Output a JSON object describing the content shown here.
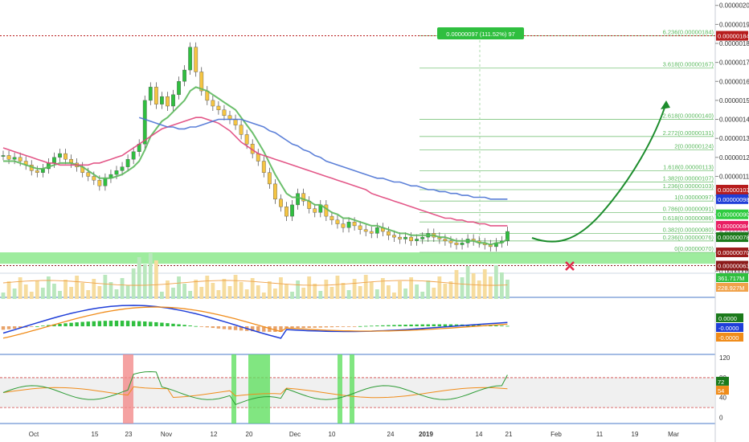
{
  "chart_data": {
    "type": "line",
    "symbol_unit": "price",
    "x_ticks": [
      {
        "label": "Oct",
        "bold": false
      },
      {
        "label": "15",
        "bold": false
      },
      {
        "label": "23",
        "bold": false
      },
      {
        "label": "Nov",
        "bold": false
      },
      {
        "label": "12",
        "bold": false
      },
      {
        "label": "20",
        "bold": false
      },
      {
        "label": "Dec",
        "bold": false
      },
      {
        "label": "10",
        "bold": false
      },
      {
        "label": "24",
        "bold": false
      },
      {
        "label": "2019",
        "bold": true
      },
      {
        "label": "14",
        "bold": false
      },
      {
        "label": "21",
        "bold": false
      },
      {
        "label": "Feb",
        "bold": false
      },
      {
        "label": "11",
        "bold": false
      },
      {
        "label": "19",
        "bold": false
      },
      {
        "label": "Mar",
        "bold": false
      }
    ],
    "price_axis": {
      "ticks": [
        "0.00000200",
        "0.00000190",
        "0.00000180",
        "0.00000170",
        "0.00000160",
        "0.00000150",
        "0.00000140",
        "0.00000130",
        "0.00000120",
        "0.00000110",
        "0.00000100",
        "0.00000090",
        "0.00000080",
        "0.00000070",
        "0.00000060"
      ],
      "range": [
        5.9e-07,
        2.02e-06
      ]
    },
    "price_tags": [
      {
        "label": "0.00000184",
        "value": 1.84e-06,
        "color": "#b71c1c"
      },
      {
        "label": "0.00000103",
        "value": 1.03e-06,
        "color": "#b71c1c"
      },
      {
        "label": "0.00000098",
        "value": 9.8e-07,
        "color": "#1f3ed8"
      },
      {
        "label": "0.00000090",
        "value": 9e-07,
        "color": "#2ecc40"
      },
      {
        "label": "0.00000084",
        "value": 8.4e-07,
        "color": "#e91e63"
      },
      {
        "label": "0.00000078",
        "value": 7.8e-07,
        "color": "#1b7a1b"
      },
      {
        "label": "0.00000070",
        "value": 7e-07,
        "color": "#9b1c1c"
      },
      {
        "label": "0.00000063",
        "value": 6.3e-07,
        "color": "#8b1a1a"
      }
    ],
    "fib_levels": [
      {
        "label": "6.236(0.00000184)",
        "value": 1.84e-06
      },
      {
        "label": "3.618(0.00000167)",
        "value": 1.67e-06
      },
      {
        "label": "2.618(0.00000140)",
        "value": 1.4e-06
      },
      {
        "label": "2.272(0.00000131)",
        "value": 1.31e-06
      },
      {
        "label": "2(0.00000124)",
        "value": 1.24e-06
      },
      {
        "label": "1.618(0.00000113)",
        "value": 1.13e-06
      },
      {
        "label": "1.382(0.00000107)",
        "value": 1.07e-06
      },
      {
        "label": "1.236(0.00000103)",
        "value": 1.03e-06
      },
      {
        "label": "1(0.00000097)",
        "value": 9.7e-07
      },
      {
        "label": "0.786(0.00000091)",
        "value": 9.1e-07
      },
      {
        "label": "0.618(0.00000086)",
        "value": 8.6e-07
      },
      {
        "label": "0.382(0.00000080)",
        "value": 8e-07
      },
      {
        "label": "0.236(0.00000076)",
        "value": 7.6e-07
      },
      {
        "label": "0(0.00000070)",
        "value": 7e-07
      }
    ],
    "measure_label": "0.00000097 (111.52%) 97",
    "volume_tags": [
      "361.717M",
      "228.927M"
    ],
    "macd_tags": [
      {
        "label": "0.0000",
        "color": "#1b7a1b"
      },
      {
        "label": "-0.0000",
        "color": "#1f3ed8"
      },
      {
        "label": "-0.0000",
        "color": "#f08c1a"
      }
    ],
    "rsi_axis": {
      "ticks": [
        "120",
        "80",
        "40",
        "0"
      ],
      "range": [
        -12,
        125
      ]
    },
    "rsi_tags": [
      {
        "label": "72",
        "value": 72,
        "color": "#1b7a1b"
      },
      {
        "label": "54",
        "value": 54,
        "color": "#f08c1a"
      }
    ],
    "series": [
      {
        "role": "price",
        "close": [
          1.21e-06,
          1.19e-06,
          1.2e-06,
          1.18e-06,
          1.16e-06,
          1.13e-06,
          1.12e-06,
          1.14e-06,
          1.17e-06,
          1.2e-06,
          1.22e-06,
          1.19e-06,
          1.17e-06,
          1.15e-06,
          1.12e-06,
          1.1e-06,
          1.08e-06,
          1.05e-06,
          1.09e-06,
          1.11e-06,
          1.13e-06,
          1.15e-06,
          1.19e-06,
          1.23e-06,
          1.27e-06,
          1.5e-06,
          1.57e-06,
          1.48e-06,
          1.52e-06,
          1.47e-06,
          1.53e-06,
          1.6e-06,
          1.66e-06,
          1.78e-06,
          1.65e-06,
          1.55e-06,
          1.5e-06,
          1.47e-06,
          1.45e-06,
          1.42e-06,
          1.4e-06,
          1.37e-06,
          1.32e-06,
          1.27e-06,
          1.22e-06,
          1.18e-06,
          1.12e-06,
          1.06e-06,
          9.8e-07,
          9.4e-07,
          8.9e-07,
          9.5e-07,
          1.01e-06,
          9.7e-07,
          9.3e-07,
          9.1e-07,
          9.5e-07,
          8.9e-07,
          8.7e-07,
          8.5e-07,
          8.3e-07,
          8.6e-07,
          8.4e-07,
          8.2e-07,
          8.1e-07,
          8e-07,
          8.3e-07,
          8.1e-07,
          7.9e-07,
          7.8e-07,
          7.7e-07,
          7.8e-07,
          7.6e-07,
          7.7e-07,
          7.8e-07,
          8e-07,
          7.8e-07,
          7.7e-07,
          7.6e-07,
          7.5e-07,
          7.4e-07,
          7.5e-07,
          7.7e-07,
          7.6e-07,
          7.5e-07,
          7.4e-07,
          7.3e-07,
          7.5e-07,
          7.6e-07,
          8.1e-07
        ]
      },
      {
        "role": "ema-short",
        "color": "#5cb85c",
        "values": [
          1.18e-06,
          1.18e-06,
          1.18e-06,
          1.17e-06,
          1.16e-06,
          1.15e-06,
          1.14e-06,
          1.14e-06,
          1.15e-06,
          1.16e-06,
          1.17e-06,
          1.17e-06,
          1.17e-06,
          1.16e-06,
          1.15e-06,
          1.13e-06,
          1.11e-06,
          1.09e-06,
          1.09e-06,
          1.09e-06,
          1.1e-06,
          1.11e-06,
          1.13e-06,
          1.15e-06,
          1.18e-06,
          1.24e-06,
          1.31e-06,
          1.35e-06,
          1.39e-06,
          1.41e-06,
          1.44e-06,
          1.47e-06,
          1.5e-06,
          1.55e-06,
          1.57e-06,
          1.56e-06,
          1.55e-06,
          1.53e-06,
          1.51e-06,
          1.49e-06,
          1.47e-06,
          1.45e-06,
          1.41e-06,
          1.37e-06,
          1.33e-06,
          1.28e-06,
          1.23e-06,
          1.17e-06,
          1.11e-06,
          1.06e-06,
          1.01e-06,
          9.9e-07,
          9.9e-07,
          9.8e-07,
          9.7e-07,
          9.5e-07,
          9.5e-07,
          9.3e-07,
          9.1e-07,
          9e-07,
          8.8e-07,
          8.8e-07,
          8.7e-07,
          8.6e-07,
          8.5e-07,
          8.4e-07,
          8.4e-07,
          8.3e-07,
          8.2e-07,
          8.1e-07,
          8e-07,
          8e-07,
          7.9e-07,
          7.9e-07,
          7.9e-07,
          7.9e-07,
          7.9e-07,
          7.8e-07,
          7.8e-07,
          7.7e-07,
          7.6e-07,
          7.6e-07,
          7.6e-07,
          7.6e-07,
          7.5e-07,
          7.5e-07,
          7.4e-07,
          7.5e-07,
          7.5e-07,
          7.7e-07
        ]
      },
      {
        "role": "ma-mid",
        "color": "#e0457b",
        "values": [
          1.25e-06,
          1.24e-06,
          1.23e-06,
          1.22e-06,
          1.21e-06,
          1.2e-06,
          1.19e-06,
          1.18e-06,
          1.17e-06,
          1.17e-06,
          1.16e-06,
          1.16e-06,
          1.16e-06,
          1.16e-06,
          1.16e-06,
          1.16e-06,
          1.17e-06,
          1.17e-06,
          1.18e-06,
          1.19e-06,
          1.2e-06,
          1.21e-06,
          1.23e-06,
          1.25e-06,
          1.27e-06,
          1.29e-06,
          1.31e-06,
          1.33e-06,
          1.35e-06,
          1.36e-06,
          1.37e-06,
          1.38e-06,
          1.39e-06,
          1.4e-06,
          1.41e-06,
          1.41e-06,
          1.4e-06,
          1.39e-06,
          1.38e-06,
          1.36e-06,
          1.34e-06,
          1.31e-06,
          1.28e-06,
          1.26e-06,
          1.24e-06,
          1.22e-06,
          1.21e-06,
          1.2e-06,
          1.19e-06,
          1.18e-06,
          1.17e-06,
          1.16e-06,
          1.15e-06,
          1.14e-06,
          1.13e-06,
          1.12e-06,
          1.11e-06,
          1.1e-06,
          1.09e-06,
          1.08e-06,
          1.07e-06,
          1.06e-06,
          1.05e-06,
          1.04e-06,
          1.03e-06,
          1.01e-06,
          1e-06,
          9.9e-07,
          9.8e-07,
          9.7e-07,
          9.6e-07,
          9.5e-07,
          9.4e-07,
          9.3e-07,
          9.2e-07,
          9.1e-07,
          9e-07,
          8.9e-07,
          8.8e-07,
          8.8e-07,
          8.7e-07,
          8.7e-07,
          8.6e-07,
          8.6e-07,
          8.5e-07,
          8.5e-07,
          8.4e-07,
          8.4e-07,
          8.4e-07,
          8.4e-07
        ]
      },
      {
        "role": "ma-long",
        "color": "#4a72d4",
        "values": [
          null,
          null,
          null,
          null,
          null,
          null,
          null,
          null,
          null,
          null,
          null,
          null,
          null,
          null,
          null,
          null,
          null,
          null,
          null,
          null,
          null,
          null,
          null,
          null,
          1.41e-06,
          1.4e-06,
          1.39e-06,
          1.38e-06,
          1.37e-06,
          1.36e-06,
          1.36e-06,
          1.35e-06,
          1.35e-06,
          1.36e-06,
          1.36e-06,
          1.37e-06,
          1.38e-06,
          1.39e-06,
          1.4e-06,
          1.4e-06,
          1.4e-06,
          1.4e-06,
          1.4e-06,
          1.39e-06,
          1.38e-06,
          1.37e-06,
          1.36e-06,
          1.34e-06,
          1.33e-06,
          1.31e-06,
          1.29e-06,
          1.27e-06,
          1.26e-06,
          1.24e-06,
          1.23e-06,
          1.21e-06,
          1.2e-06,
          1.18e-06,
          1.17e-06,
          1.16e-06,
          1.15e-06,
          1.14e-06,
          1.13e-06,
          1.12e-06,
          1.11e-06,
          1.1e-06,
          1.09e-06,
          1.09e-06,
          1.08e-06,
          1.07e-06,
          1.07e-06,
          1.06e-06,
          1.05e-06,
          1.05e-06,
          1.04e-06,
          1.03e-06,
          1.03e-06,
          1.02e-06,
          1.02e-06,
          1.01e-06,
          1.01e-06,
          1e-06,
          1e-06,
          9.9e-07,
          9.9e-07,
          9.9e-07,
          9.8e-07,
          9.8e-07,
          9.8e-07,
          9.8e-07
        ]
      }
    ]
  }
}
